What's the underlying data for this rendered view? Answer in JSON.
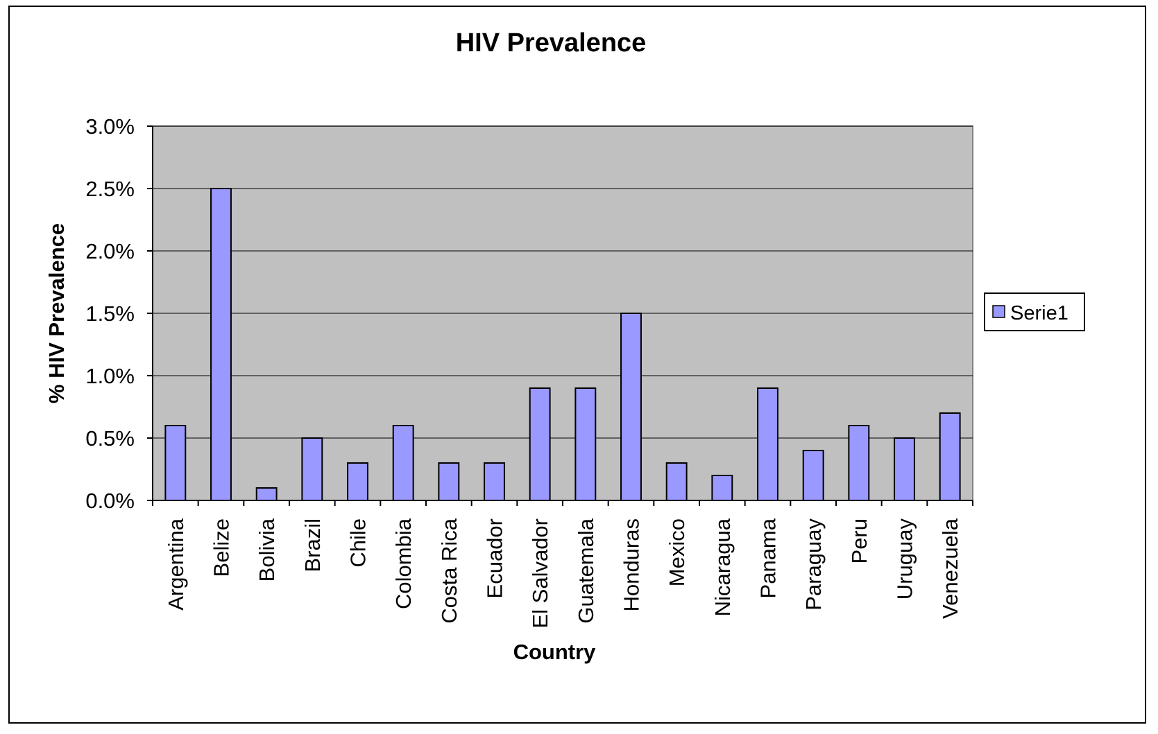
{
  "chart_data": {
    "type": "bar",
    "title": "HIV Prevalence",
    "xlabel": "Country",
    "ylabel": "% HIV Prevalence",
    "categories": [
      "Argentina",
      "Belize",
      "Bolivia",
      "Brazil",
      "Chile",
      "Colombia",
      "Costa Rica",
      "Ecuador",
      "El Salvador",
      "Guatemala",
      "Honduras",
      "Mexico",
      "Nicaragua",
      "Panama",
      "Paraguay",
      "Peru",
      "Uruguay",
      "Venezuela"
    ],
    "series": [
      {
        "name": "Serie1",
        "values": [
          0.6,
          2.5,
          0.1,
          0.5,
          0.3,
          0.6,
          0.3,
          0.3,
          0.9,
          0.9,
          1.5,
          0.3,
          0.2,
          0.9,
          0.4,
          0.6,
          0.5,
          0.7
        ]
      }
    ],
    "ylim": [
      0,
      3.0
    ],
    "yticks": [
      "0.0%",
      "0.5%",
      "1.0%",
      "1.5%",
      "2.0%",
      "2.5%",
      "3.0%"
    ],
    "grid": true,
    "legend_position": "right",
    "colors": {
      "plot_background": "#c0c0c0",
      "bar_fill": "#9999ff",
      "bar_stroke": "#000000",
      "gridline": "#000000"
    }
  }
}
